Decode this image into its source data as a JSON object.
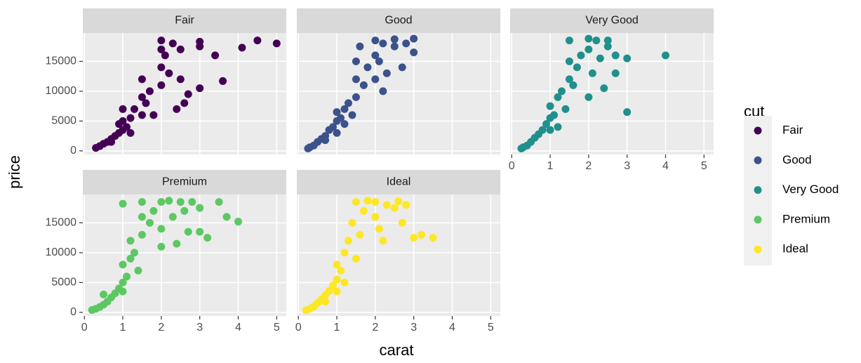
{
  "chart_data": {
    "type": "scatter",
    "xlabel": "carat",
    "ylabel": "price",
    "legend_title": "cut",
    "xlim": [
      -0.04,
      5.25
    ],
    "ylim": [
      -600,
      19750
    ],
    "xticks": [
      0,
      1,
      2,
      3,
      4,
      5
    ],
    "yticks": [
      0,
      5000,
      10000,
      15000
    ],
    "grid": true,
    "series": [
      {
        "name": "Fair",
        "color": "#440154",
        "x": [
          0.3,
          0.4,
          0.5,
          0.6,
          0.7,
          0.8,
          0.9,
          1.0,
          1.0,
          1.0,
          1.1,
          1.2,
          1.5,
          1.5,
          1.5,
          1.6,
          1.7,
          2.0,
          2.0,
          2.0,
          2.0,
          2.1,
          2.2,
          2.3,
          2.5,
          2.5,
          2.6,
          3.0,
          3.0,
          3.0,
          3.4,
          3.6,
          4.1,
          4.5,
          5.0,
          1.2,
          1.3,
          0.7,
          0.9,
          2.4,
          1.8,
          2.7
        ],
        "y": [
          500,
          800,
          1200,
          1500,
          2000,
          2500,
          3000,
          3500,
          5000,
          7000,
          4000,
          5500,
          6000,
          9000,
          12000,
          8000,
          10000,
          11000,
          14000,
          17000,
          18500,
          16000,
          13000,
          18000,
          12000,
          17000,
          8000,
          10500,
          17500,
          18300,
          16000,
          11700,
          17300,
          18500,
          18000,
          3000,
          7000,
          1500,
          4500,
          7000,
          6000,
          9500
        ]
      },
      {
        "name": "Good",
        "color": "#3B528B",
        "x": [
          0.25,
          0.3,
          0.4,
          0.5,
          0.6,
          0.7,
          0.8,
          0.9,
          1.0,
          1.0,
          1.1,
          1.2,
          1.3,
          1.5,
          1.5,
          1.5,
          1.6,
          1.7,
          1.8,
          2.0,
          2.0,
          2.0,
          2.1,
          2.2,
          2.3,
          2.5,
          2.5,
          2.8,
          3.0,
          3.0,
          2.7,
          1.0,
          0.7,
          1.2,
          2.2,
          1.4
        ],
        "y": [
          400,
          600,
          900,
          1500,
          2000,
          2500,
          3500,
          4000,
          5000,
          6500,
          5500,
          7000,
          8000,
          9000,
          12000,
          15000,
          17500,
          11000,
          14000,
          12000,
          16000,
          18500,
          15000,
          18000,
          13000,
          17500,
          18700,
          18000,
          18800,
          16500,
          14000,
          3000,
          1800,
          4500,
          10000,
          6000
        ]
      },
      {
        "name": "Very Good",
        "color": "#21908C",
        "x": [
          0.25,
          0.3,
          0.4,
          0.5,
          0.6,
          0.7,
          0.8,
          0.9,
          1.0,
          1.0,
          1.1,
          1.2,
          1.3,
          1.5,
          1.5,
          1.5,
          1.6,
          1.7,
          1.8,
          2.0,
          2.0,
          2.1,
          2.2,
          2.3,
          2.5,
          2.5,
          2.7,
          2.7,
          3.0,
          3.0,
          4.0,
          1.2,
          1.0,
          2.4,
          2.0,
          1.4
        ],
        "y": [
          400,
          600,
          900,
          1500,
          2200,
          2800,
          3500,
          4500,
          5500,
          7500,
          6000,
          9000,
          10000,
          12000,
          15000,
          18500,
          11000,
          14000,
          16000,
          17000,
          18800,
          13000,
          18500,
          15500,
          17500,
          18500,
          16000,
          13000,
          15500,
          6500,
          16000,
          4000,
          3500,
          10500,
          9000,
          7000
        ]
      },
      {
        "name": "Premium",
        "color": "#5DC863",
        "x": [
          0.2,
          0.3,
          0.4,
          0.5,
          0.6,
          0.7,
          0.8,
          0.9,
          1.0,
          1.0,
          1.1,
          1.2,
          1.2,
          1.3,
          1.5,
          1.5,
          1.5,
          1.7,
          1.8,
          2.0,
          2.0,
          2.2,
          2.3,
          2.5,
          2.6,
          2.7,
          2.8,
          3.0,
          3.0,
          3.2,
          3.5,
          3.7,
          4.0,
          1.0,
          0.5,
          1.4,
          2.0,
          2.4,
          1.0
        ],
        "y": [
          400,
          600,
          900,
          1300,
          1800,
          2500,
          3200,
          4000,
          5000,
          8000,
          6000,
          9000,
          12000,
          10000,
          13000,
          16000,
          18500,
          15000,
          17000,
          18500,
          14000,
          18700,
          16000,
          18500,
          17000,
          13500,
          18500,
          17500,
          13500,
          12500,
          18500,
          16000,
          15200,
          18200,
          3000,
          7000,
          11000,
          11500,
          3500
        ]
      },
      {
        "name": "Ideal",
        "color": "#FDE725",
        "x": [
          0.2,
          0.3,
          0.4,
          0.5,
          0.6,
          0.7,
          0.8,
          0.9,
          1.0,
          1.0,
          1.1,
          1.2,
          1.3,
          1.4,
          1.5,
          1.6,
          1.7,
          1.8,
          2.0,
          2.0,
          2.1,
          2.3,
          2.5,
          2.6,
          2.7,
          2.8,
          3.0,
          3.2,
          3.5,
          1.0,
          0.7,
          1.5,
          2.2,
          1.2
        ],
        "y": [
          350,
          600,
          1000,
          1600,
          2200,
          2900,
          3600,
          4500,
          5500,
          8000,
          7000,
          10000,
          12000,
          15000,
          18500,
          13000,
          17000,
          18700,
          16000,
          18500,
          14000,
          18000,
          17500,
          18600,
          15000,
          18000,
          12500,
          13000,
          12500,
          3500,
          1800,
          9000,
          12000,
          5000
        ]
      }
    ]
  }
}
